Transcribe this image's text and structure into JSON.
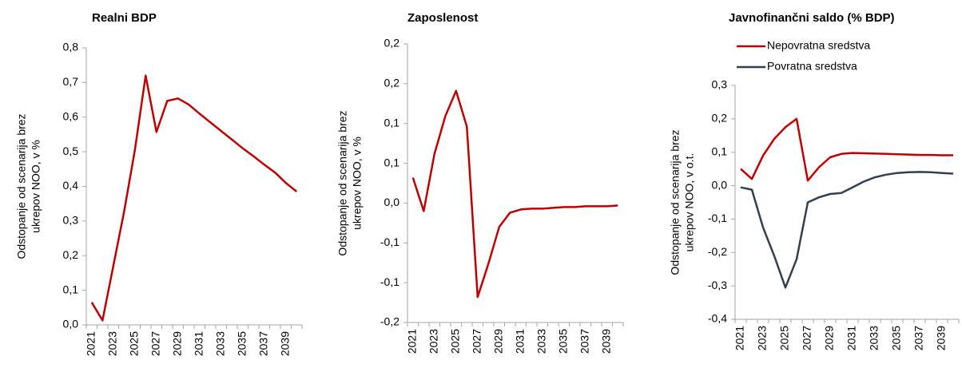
{
  "chart_data": [
    {
      "type": "line",
      "title": "Realni BDP",
      "ylabel": [
        "Odstopanje od scenarija brez",
        "ukrepov NOO, v %"
      ],
      "categories": [
        "2021",
        null,
        "2023",
        null,
        "2025",
        null,
        "2027",
        null,
        "2029",
        null,
        "2031",
        null,
        "2033",
        null,
        "2035",
        null,
        "2037",
        null,
        "2039",
        null
      ],
      "series": [
        {
          "color": "#c00000",
          "values": [
            0.065,
            0.013,
            0.17,
            0.327,
            0.505,
            0.72,
            0.557,
            0.647,
            0.654,
            0.636,
            0.61,
            0.585,
            0.56,
            0.535,
            0.51,
            0.487,
            0.463,
            0.44,
            0.41,
            0.385
          ]
        }
      ],
      "ylim": [
        0,
        0.8
      ],
      "yticks": [
        {
          "value": 0,
          "label": "0,0"
        },
        {
          "value": 0.1,
          "label": "0,1"
        },
        {
          "value": 0.2,
          "label": "0,2"
        },
        {
          "value": 0.3,
          "label": "0,3"
        },
        {
          "value": 0.4,
          "label": "0,4"
        },
        {
          "value": 0.5,
          "label": "0,5"
        },
        {
          "value": 0.6,
          "label": "0,6"
        },
        {
          "value": 0.7,
          "label": "0,7"
        },
        {
          "value": 0.8,
          "label": "0,8"
        }
      ]
    },
    {
      "type": "line",
      "title": "Zaposlenost",
      "ylabel": [
        "Odstopanje od scenarija brez",
        "ukrepov NOO, v %"
      ],
      "categories": [
        "2021",
        null,
        "2023",
        null,
        "2025",
        null,
        "2027",
        null,
        "2029",
        null,
        "2031",
        null,
        "2033",
        null,
        "2035",
        null,
        "2037",
        null,
        "2039",
        null
      ],
      "series": [
        {
          "color": "#c00000",
          "values": [
            0.032,
            -0.01,
            0.062,
            0.109,
            0.141,
            0.096,
            -0.118,
            -0.076,
            -0.03,
            -0.012,
            -0.008,
            -0.007,
            -0.007,
            -0.006,
            -0.005,
            -0.005,
            -0.004,
            -0.004,
            -0.004,
            -0.003
          ]
        }
      ],
      "ylim": [
        -0.15,
        0.2
      ],
      "yticks": [
        {
          "value": -0.15,
          "label": "-0,2"
        },
        {
          "value": -0.1,
          "label": "-0,1"
        },
        {
          "value": -0.05,
          "label": "-0,1"
        },
        {
          "value": 0,
          "label": "0,0"
        },
        {
          "value": 0.05,
          "label": "0,1"
        },
        {
          "value": 0.1,
          "label": "0,1"
        },
        {
          "value": 0.15,
          "label": "0,2"
        },
        {
          "value": 0.2,
          "label": "0,2"
        }
      ]
    },
    {
      "type": "line",
      "title": "Javnofinančni saldo (% BDP)",
      "ylabel": [
        "Odstopanje od scenarija brez",
        "ukrepov NOO, v o.t."
      ],
      "categories": [
        "2021",
        null,
        "2023",
        null,
        "2025",
        null,
        "2027",
        null,
        "2029",
        null,
        "2031",
        null,
        "2033",
        null,
        "2035",
        null,
        "2037",
        null,
        "2039",
        null
      ],
      "series": [
        {
          "name": "Nepovratna sredstva",
          "color": "#c00000",
          "values": [
            0.05,
            0.02,
            0.09,
            0.14,
            0.175,
            0.2,
            0.015,
            0.055,
            0.085,
            0.095,
            0.098,
            0.097,
            0.096,
            0.095,
            0.094,
            0.093,
            0.092,
            0.092,
            0.091,
            0.091
          ]
        },
        {
          "name": "Povratna sredstva",
          "color": "#333f50",
          "values": [
            -0.005,
            -0.012,
            -0.125,
            -0.21,
            -0.305,
            -0.22,
            -0.05,
            -0.035,
            -0.025,
            -0.022,
            -0.005,
            0.012,
            0.025,
            0.033,
            0.038,
            0.04,
            0.041,
            0.04,
            0.038,
            0.036
          ]
        }
      ],
      "ylim": [
        -0.4,
        0.3
      ],
      "yticks": [
        {
          "value": -0.4,
          "label": "-0,4"
        },
        {
          "value": -0.3,
          "label": "-0,3"
        },
        {
          "value": -0.2,
          "label": "-0,2"
        },
        {
          "value": -0.1,
          "label": "-0,1"
        },
        {
          "value": 0,
          "label": "0,0"
        },
        {
          "value": 0.1,
          "label": "0,1"
        },
        {
          "value": 0.2,
          "label": "0,2"
        },
        {
          "value": 0.3,
          "label": "0,3"
        }
      ],
      "legend": "top-left"
    }
  ]
}
